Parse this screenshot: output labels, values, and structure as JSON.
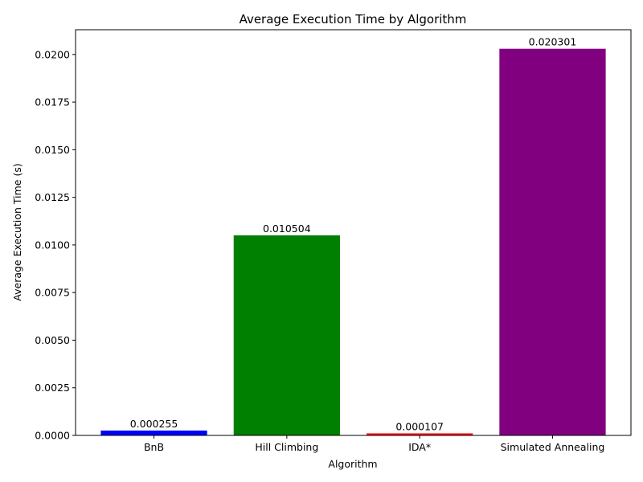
{
  "chart_data": {
    "type": "bar",
    "title": "Average Execution Time by Algorithm",
    "xlabel": "Algorithm",
    "ylabel": "Average Execution Time (s)",
    "categories": [
      "BnB",
      "Hill Climbing",
      "IDA*",
      "Simulated Annealing"
    ],
    "values": [
      0.000255,
      0.010504,
      0.000107,
      0.020301
    ],
    "data_labels": [
      "0.000255",
      "0.010504",
      "0.000107",
      "0.020301"
    ],
    "colors": [
      "#0000ff",
      "#008000",
      "#ff0000",
      "#800080"
    ],
    "ylim": [
      0,
      0.0213
    ],
    "yticks": [
      0.0,
      0.0025,
      0.005,
      0.0075,
      0.01,
      0.0125,
      0.015,
      0.0175,
      0.02
    ],
    "ytick_labels": [
      "0.0000",
      "0.0025",
      "0.0050",
      "0.0075",
      "0.0100",
      "0.0125",
      "0.0150",
      "0.0175",
      "0.0200"
    ],
    "grid": false,
    "legend": "none"
  }
}
